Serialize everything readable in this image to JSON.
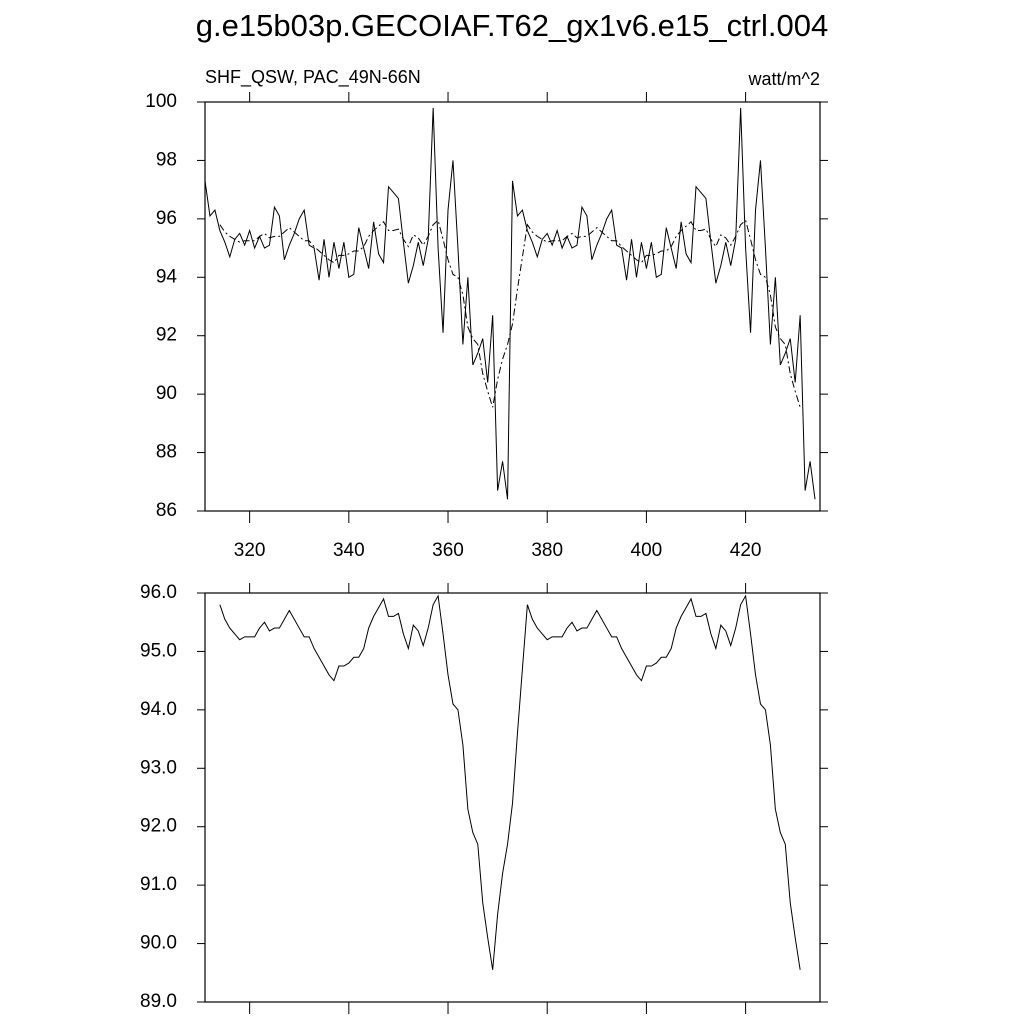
{
  "chart_data": [
    {
      "type": "line",
      "title": "g.e15b03p.GECOIAF.T62_gx1v6.e15_ctrl.004",
      "left_label": "SHF_QSW, PAC_49N-66N",
      "right_label": "watt/m^2",
      "x": [
        311,
        312,
        313,
        314,
        315,
        316,
        317,
        318,
        319,
        320,
        321,
        322,
        323,
        324,
        325,
        326,
        327,
        328,
        329,
        330,
        331,
        332,
        333,
        334,
        335,
        336,
        337,
        338,
        339,
        340,
        341,
        342,
        343,
        344,
        345,
        346,
        347,
        348,
        349,
        350,
        351,
        352,
        353,
        354,
        355,
        356,
        357,
        358,
        359,
        360,
        361,
        362,
        363,
        364,
        365,
        366,
        367,
        368,
        369,
        370,
        371,
        372,
        373,
        374,
        375,
        376,
        377,
        378,
        379,
        380,
        381,
        382,
        383,
        384,
        385,
        386,
        387,
        388,
        389,
        390,
        391,
        392,
        393,
        394,
        395,
        396,
        397,
        398,
        399,
        400,
        401,
        402,
        403,
        404,
        405,
        406,
        407,
        408,
        409,
        410,
        411,
        412,
        413,
        414,
        415,
        416,
        417,
        418,
        419,
        420,
        421,
        422,
        423,
        424,
        425,
        426,
        427,
        428,
        429,
        430,
        431,
        432,
        433,
        434
      ],
      "series": [
        {
          "color": "#000000",
          "dashed": false,
          "values": [
            97.3,
            96.1,
            96.3,
            95.6,
            95.2,
            94.7,
            95.3,
            95.5,
            95.1,
            95.6,
            95.0,
            95.4,
            95.0,
            95.1,
            96.4,
            96.1,
            94.6,
            95.1,
            95.5,
            96.0,
            96.3,
            95.1,
            95.0,
            93.9,
            95.3,
            94.0,
            95.2,
            94.3,
            95.2,
            94.0,
            94.1,
            95.7,
            95.0,
            94.3,
            95.9,
            94.8,
            94.5,
            97.1,
            96.9,
            96.7,
            95.2,
            93.8,
            94.4,
            95.2,
            94.4,
            95.3,
            99.8,
            95.0,
            92.1,
            96.3,
            98.0,
            95.0,
            91.7,
            94.0,
            91.0,
            91.4,
            91.9,
            90.4,
            92.7,
            86.7,
            87.7,
            86.4,
            97.3,
            96.1,
            96.3,
            95.6,
            95.2,
            94.7,
            95.3,
            95.5,
            95.1,
            95.6,
            95.0,
            95.4,
            95.0,
            95.1,
            96.4,
            96.1,
            94.6,
            95.1,
            95.5,
            96.0,
            96.3,
            95.1,
            95.0,
            93.9,
            95.3,
            94.0,
            95.2,
            94.3,
            95.2,
            94.0,
            94.1,
            95.7,
            95.0,
            94.3,
            95.9,
            94.8,
            94.5,
            97.1,
            96.9,
            96.7,
            95.2,
            93.8,
            94.4,
            95.2,
            94.4,
            95.3,
            99.8,
            95.0,
            92.1,
            96.3,
            98.0,
            95.0,
            91.7,
            94.0,
            91.0,
            91.4,
            91.9,
            90.4,
            92.7,
            86.7,
            87.7,
            86.4
          ]
        },
        {
          "color": "#000000",
          "dashed": true,
          "values": [
            null,
            null,
            null,
            95.8,
            95.55,
            95.4,
            95.3,
            95.2,
            95.25,
            95.25,
            95.25,
            95.4,
            95.5,
            95.35,
            95.4,
            95.4,
            95.55,
            95.7,
            95.55,
            95.4,
            95.25,
            95.25,
            95.05,
            94.9,
            94.75,
            94.6,
            94.5,
            94.75,
            94.75,
            94.8,
            94.9,
            94.9,
            95.05,
            95.4,
            95.6,
            95.75,
            95.9,
            95.6,
            95.6,
            95.65,
            95.3,
            95.05,
            95.45,
            95.35,
            95.1,
            95.4,
            95.8,
            95.95,
            95.3,
            94.6,
            94.1,
            94.0,
            93.4,
            92.3,
            91.9,
            91.7,
            90.7,
            90.1,
            89.55,
            90.5,
            91.2,
            91.7,
            92.4,
            93.6,
            94.7,
            95.8,
            95.55,
            95.4,
            95.3,
            95.2,
            95.25,
            95.25,
            95.25,
            95.4,
            95.5,
            95.35,
            95.4,
            95.4,
            95.55,
            95.7,
            95.55,
            95.4,
            95.25,
            95.25,
            95.05,
            94.9,
            94.75,
            94.6,
            94.5,
            94.75,
            94.75,
            94.8,
            94.9,
            94.9,
            95.05,
            95.4,
            95.6,
            95.75,
            95.9,
            95.6,
            95.6,
            95.65,
            95.3,
            95.05,
            95.45,
            95.35,
            95.1,
            95.4,
            95.8,
            95.95,
            95.3,
            94.6,
            94.1,
            94.0,
            93.4,
            92.3,
            91.9,
            91.7,
            90.7,
            90.1,
            89.55,
            null,
            null,
            null
          ]
        }
      ],
      "xlim": [
        311,
        435
      ],
      "xticks": [
        320,
        340,
        360,
        380,
        400,
        420
      ],
      "xtick_labels": true,
      "ylim": [
        86,
        100
      ],
      "yticks": [
        86,
        88,
        90,
        92,
        94,
        96,
        98,
        100
      ]
    },
    {
      "type": "line",
      "x": [
        311,
        312,
        313,
        314,
        315,
        316,
        317,
        318,
        319,
        320,
        321,
        322,
        323,
        324,
        325,
        326,
        327,
        328,
        329,
        330,
        331,
        332,
        333,
        334,
        335,
        336,
        337,
        338,
        339,
        340,
        341,
        342,
        343,
        344,
        345,
        346,
        347,
        348,
        349,
        350,
        351,
        352,
        353,
        354,
        355,
        356,
        357,
        358,
        359,
        360,
        361,
        362,
        363,
        364,
        365,
        366,
        367,
        368,
        369,
        370,
        371,
        372,
        373,
        374,
        375,
        376,
        377,
        378,
        379,
        380,
        381,
        382,
        383,
        384,
        385,
        386,
        387,
        388,
        389,
        390,
        391,
        392,
        393,
        394,
        395,
        396,
        397,
        398,
        399,
        400,
        401,
        402,
        403,
        404,
        405,
        406,
        407,
        408,
        409,
        410,
        411,
        412,
        413,
        414,
        415,
        416,
        417,
        418,
        419,
        420,
        421,
        422,
        423,
        424,
        425,
        426,
        427,
        428,
        429,
        430,
        431,
        432,
        433,
        434
      ],
      "series": [
        {
          "color": "#000000",
          "dashed": false,
          "values": [
            null,
            null,
            null,
            95.8,
            95.55,
            95.4,
            95.3,
            95.2,
            95.25,
            95.25,
            95.25,
            95.4,
            95.5,
            95.35,
            95.4,
            95.4,
            95.55,
            95.7,
            95.55,
            95.4,
            95.25,
            95.25,
            95.05,
            94.9,
            94.75,
            94.6,
            94.5,
            94.75,
            94.75,
            94.8,
            94.9,
            94.9,
            95.05,
            95.4,
            95.6,
            95.75,
            95.9,
            95.6,
            95.6,
            95.65,
            95.3,
            95.05,
            95.45,
            95.35,
            95.1,
            95.4,
            95.8,
            95.95,
            95.3,
            94.6,
            94.1,
            94.0,
            93.4,
            92.3,
            91.9,
            91.7,
            90.7,
            90.1,
            89.55,
            90.5,
            91.2,
            91.7,
            92.4,
            93.6,
            94.7,
            95.8,
            95.55,
            95.4,
            95.3,
            95.2,
            95.25,
            95.25,
            95.25,
            95.4,
            95.5,
            95.35,
            95.4,
            95.4,
            95.55,
            95.7,
            95.55,
            95.4,
            95.25,
            95.25,
            95.05,
            94.9,
            94.75,
            94.6,
            94.5,
            94.75,
            94.75,
            94.8,
            94.9,
            94.9,
            95.05,
            95.4,
            95.6,
            95.75,
            95.9,
            95.6,
            95.6,
            95.65,
            95.3,
            95.05,
            95.45,
            95.35,
            95.1,
            95.4,
            95.8,
            95.95,
            95.3,
            94.6,
            94.1,
            94.0,
            93.4,
            92.3,
            91.9,
            91.7,
            90.7,
            90.1,
            89.55,
            null,
            null,
            null
          ]
        }
      ],
      "xlim": [
        311,
        435
      ],
      "xticks": [
        320,
        340,
        360,
        380,
        400,
        420
      ],
      "xtick_labels": false,
      "ylim": [
        89,
        96
      ],
      "yticks": [
        {
          "value": 89,
          "label": "89.0"
        },
        {
          "value": 90,
          "label": "90.0"
        },
        {
          "value": 91,
          "label": "91.0"
        },
        {
          "value": 92,
          "label": "92.0"
        },
        {
          "value": 93,
          "label": "93.0"
        },
        {
          "value": 94,
          "label": "94.0"
        },
        {
          "value": 95,
          "label": "95.0"
        },
        {
          "value": 96,
          "label": "96.0"
        }
      ]
    }
  ]
}
